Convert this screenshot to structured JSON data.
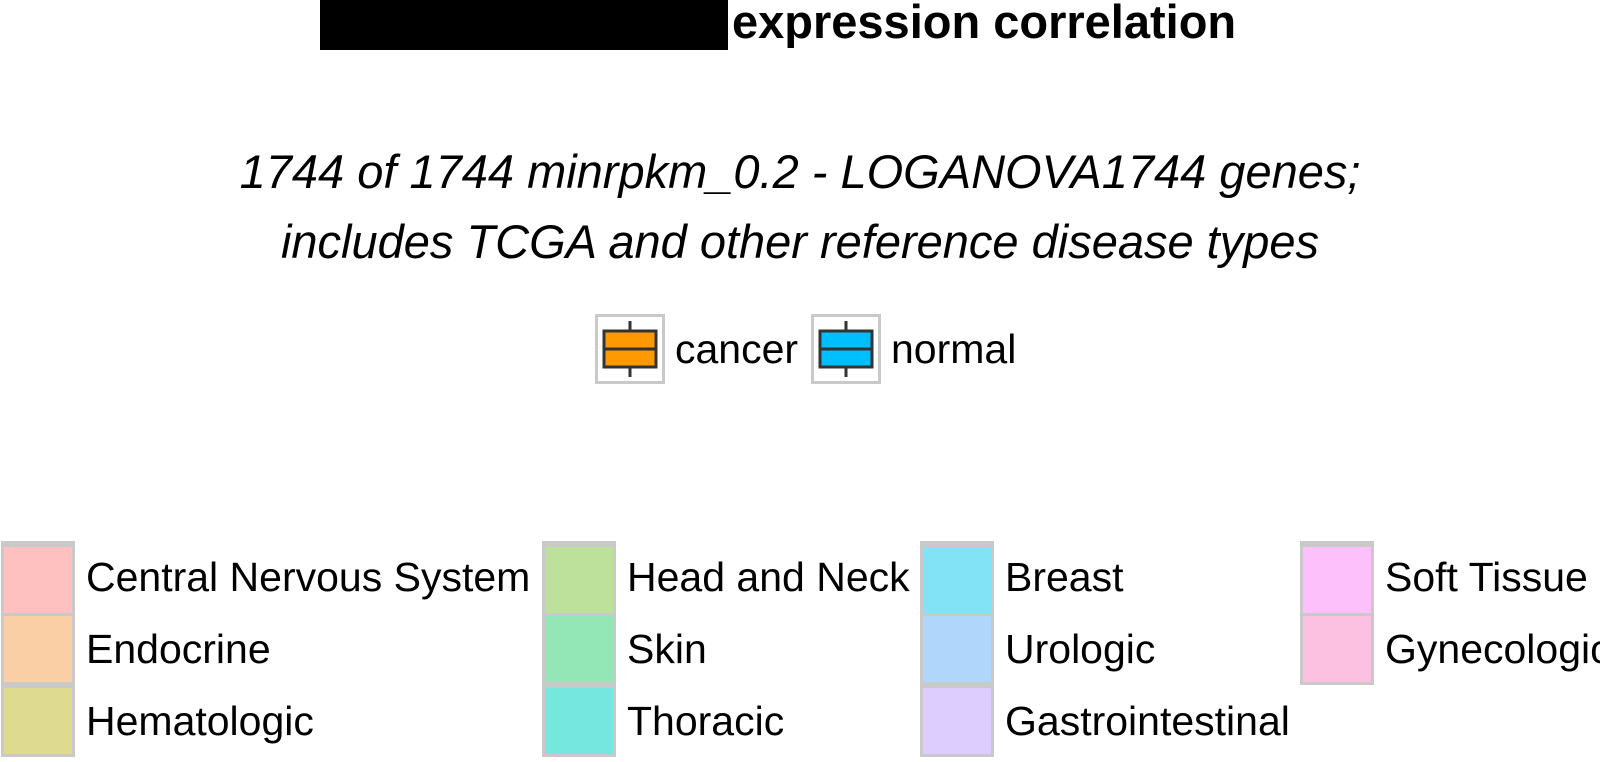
{
  "chart_data": {
    "type": "legend",
    "title_visible_part": "expression correlation",
    "subtitle_lines": [
      "1744 of 1744 minrpkm_0.2 - LOGANOVA1744 genes;",
      "includes TCGA and other reference disease types"
    ],
    "sample_legend": [
      {
        "label": "cancer",
        "color": "#FF9900"
      },
      {
        "label": "normal",
        "color": "#00BFFF"
      }
    ],
    "category_legend_columns": [
      [
        {
          "label": "Central Nervous System",
          "color": "#FFC0C0"
        },
        {
          "label": "Endocrine",
          "color": "#FBCFA6"
        },
        {
          "label": "Hematologic",
          "color": "#DEDA90"
        }
      ],
      [
        {
          "label": "Head and Neck",
          "color": "#BDE19B"
        },
        {
          "label": "Skin",
          "color": "#93E6B6"
        },
        {
          "label": "Thoracic",
          "color": "#75E7DE"
        }
      ],
      [
        {
          "label": "Breast",
          "color": "#82E2F6"
        },
        {
          "label": "Urologic",
          "color": "#B0D6FB"
        },
        {
          "label": "Gastrointestinal",
          "color": "#DCCDFE"
        }
      ],
      [
        {
          "label": "Soft Tissue",
          "color": "#FEC0FA"
        },
        {
          "label": "Gynecologic",
          "color": "#FCC0E0"
        }
      ]
    ]
  }
}
